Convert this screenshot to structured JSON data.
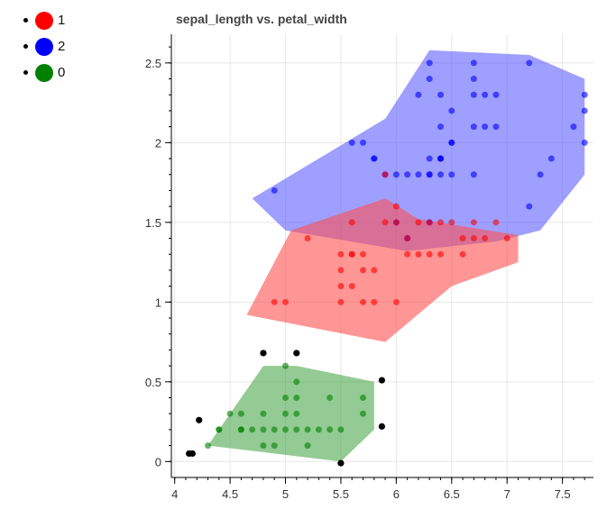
{
  "legend": [
    {
      "label": "1",
      "color": "#ff0000"
    },
    {
      "label": "2",
      "color": "#0000ff"
    },
    {
      "label": "0",
      "color": "#008000"
    }
  ],
  "chart_data": {
    "type": "scatter",
    "title": "sepal_length vs. petal_width",
    "xlabel": "",
    "ylabel": "",
    "xlim": [
      3.97,
      7.78
    ],
    "ylim": [
      -0.1,
      2.68
    ],
    "xticks": [
      4,
      4.5,
      5,
      5.5,
      6,
      6.5,
      7,
      7.5
    ],
    "xtick_labels": [
      "4",
      "4.5",
      "5",
      "5.5",
      "6",
      "6.5",
      "7",
      "7.5"
    ],
    "yticks": [
      0,
      0.5,
      1,
      1.5,
      2,
      2.5
    ],
    "ytick_labels": [
      "0",
      "0.5",
      "1",
      "1.5",
      "2",
      "2.5"
    ],
    "grid": true,
    "series": [
      {
        "legend": "2",
        "color": "#0000ff",
        "hull": [
          [
            4.7,
            1.65
          ],
          [
            5.9,
            2.15
          ],
          [
            6.3,
            2.58
          ],
          [
            7.2,
            2.55
          ],
          [
            7.7,
            2.4
          ],
          [
            7.7,
            1.8
          ],
          [
            7.3,
            1.45
          ],
          [
            6.9,
            1.38
          ],
          [
            6.1,
            1.32
          ],
          [
            5.0,
            1.45
          ]
        ],
        "points": [
          [
            4.9,
            1.7
          ],
          [
            5.6,
            2.0
          ],
          [
            5.7,
            2.0
          ],
          [
            5.8,
            1.9
          ],
          [
            5.8,
            1.9
          ],
          [
            5.9,
            1.8
          ],
          [
            6.0,
            1.8
          ],
          [
            6.1,
            1.8
          ],
          [
            6.2,
            1.8
          ],
          [
            6.3,
            1.8
          ],
          [
            6.3,
            1.8
          ],
          [
            6.4,
            1.8
          ],
          [
            6.5,
            1.8
          ],
          [
            6.7,
            1.8
          ],
          [
            6.2,
            2.3
          ],
          [
            6.3,
            2.5
          ],
          [
            6.3,
            2.4
          ],
          [
            6.4,
            2.3
          ],
          [
            6.4,
            2.1
          ],
          [
            6.5,
            2.0
          ],
          [
            6.5,
            2.2
          ],
          [
            6.4,
            1.9
          ],
          [
            6.5,
            2.0
          ],
          [
            6.7,
            2.5
          ],
          [
            6.7,
            2.3
          ],
          [
            6.7,
            2.4
          ],
          [
            6.8,
            2.3
          ],
          [
            6.7,
            2.1
          ],
          [
            6.8,
            2.1
          ],
          [
            6.9,
            2.1
          ],
          [
            6.9,
            2.3
          ],
          [
            6.3,
            1.9
          ],
          [
            6.4,
            1.9
          ],
          [
            7.2,
            2.5
          ],
          [
            7.4,
            1.9
          ],
          [
            7.3,
            1.8
          ],
          [
            7.2,
            1.6
          ],
          [
            7.6,
            2.1
          ],
          [
            7.7,
            2.3
          ],
          [
            7.7,
            2.2
          ],
          [
            7.7,
            2.0
          ],
          [
            7.9,
            2.0
          ],
          [
            6.0,
            1.5
          ],
          [
            6.3,
            1.5
          ],
          [
            6.1,
            1.4
          ],
          [
            6.4,
            1.9
          ]
        ]
      },
      {
        "legend": "1",
        "color": "#ff0000",
        "hull": [
          [
            4.65,
            0.92
          ],
          [
            5.05,
            1.45
          ],
          [
            5.9,
            1.65
          ],
          [
            6.2,
            1.52
          ],
          [
            7.1,
            1.42
          ],
          [
            7.1,
            1.25
          ],
          [
            6.5,
            1.1
          ],
          [
            5.9,
            0.75
          ]
        ],
        "points": [
          [
            4.9,
            1.0
          ],
          [
            5.0,
            1.0
          ],
          [
            5.2,
            1.4
          ],
          [
            5.5,
            1.3
          ],
          [
            5.6,
            1.3
          ],
          [
            5.7,
            1.3
          ],
          [
            5.5,
            1.2
          ],
          [
            5.7,
            1.2
          ],
          [
            5.8,
            1.2
          ],
          [
            5.5,
            1.1
          ],
          [
            5.5,
            1.0
          ],
          [
            5.7,
            1.0
          ],
          [
            5.8,
            1.0
          ],
          [
            6.0,
            1.0
          ],
          [
            5.6,
            1.1
          ],
          [
            6.1,
            1.3
          ],
          [
            6.2,
            1.3
          ],
          [
            6.3,
            1.3
          ],
          [
            6.4,
            1.3
          ],
          [
            6.6,
            1.3
          ],
          [
            6.7,
            1.4
          ],
          [
            6.8,
            1.4
          ],
          [
            7.0,
            1.4
          ],
          [
            5.9,
            1.5
          ],
          [
            6.0,
            1.5
          ],
          [
            6.2,
            1.5
          ],
          [
            6.3,
            1.5
          ],
          [
            6.5,
            1.5
          ],
          [
            6.7,
            1.5
          ],
          [
            6.9,
            1.5
          ],
          [
            5.9,
            1.8
          ],
          [
            6.0,
            1.6
          ],
          [
            6.1,
            1.4
          ],
          [
            6.4,
            1.5
          ],
          [
            6.6,
            1.4
          ],
          [
            5.6,
            1.3
          ],
          [
            5.6,
            1.5
          ]
        ]
      },
      {
        "legend": "0",
        "color": "#008000",
        "hull": [
          [
            4.3,
            0.1
          ],
          [
            4.4,
            0.2
          ],
          [
            4.8,
            0.6
          ],
          [
            5.1,
            0.6
          ],
          [
            5.8,
            0.5
          ],
          [
            5.8,
            0.2
          ],
          [
            5.5,
            0.0
          ]
        ],
        "hull_vertex_markers": [
          [
            4.13,
            0.05
          ],
          [
            4.16,
            0.05
          ],
          [
            4.22,
            0.26
          ],
          [
            4.8,
            0.68
          ],
          [
            5.1,
            0.68
          ],
          [
            5.87,
            0.51
          ],
          [
            5.87,
            0.22
          ],
          [
            5.5,
            -0.01
          ]
        ],
        "points": [
          [
            4.3,
            0.1
          ],
          [
            4.4,
            0.2
          ],
          [
            4.6,
            0.2
          ],
          [
            4.7,
            0.2
          ],
          [
            4.8,
            0.2
          ],
          [
            4.9,
            0.2
          ],
          [
            5.0,
            0.2
          ],
          [
            5.1,
            0.2
          ],
          [
            5.2,
            0.2
          ],
          [
            5.4,
            0.2
          ],
          [
            5.5,
            0.2
          ],
          [
            4.5,
            0.3
          ],
          [
            4.6,
            0.3
          ],
          [
            4.8,
            0.3
          ],
          [
            5.0,
            0.3
          ],
          [
            5.1,
            0.3
          ],
          [
            5.7,
            0.3
          ],
          [
            4.8,
            0.1
          ],
          [
            4.9,
            0.1
          ],
          [
            5.2,
            0.1
          ],
          [
            5.0,
            0.4
          ],
          [
            5.1,
            0.4
          ],
          [
            5.4,
            0.4
          ],
          [
            5.7,
            0.4
          ],
          [
            5.1,
            0.5
          ],
          [
            5.0,
            0.6
          ],
          [
            4.6,
            0.2
          ],
          [
            5.3,
            0.2
          ],
          [
            4.4,
            0.2
          ]
        ]
      }
    ]
  }
}
